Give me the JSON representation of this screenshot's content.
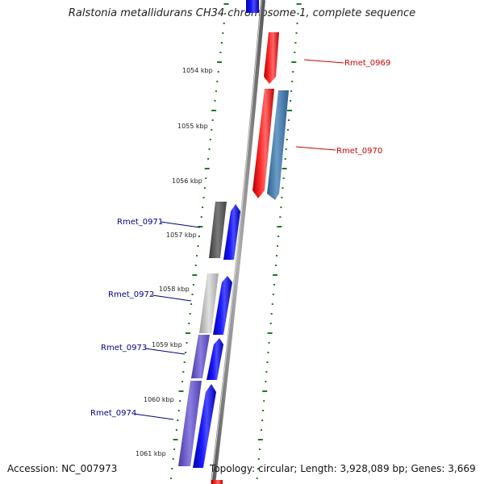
{
  "title": "Ralstonia metallidurans CH34 chromosome 1, complete sequence",
  "accession": "Accession: NC_007973",
  "topology": "Topology: circular; Length: 3,928,089 bp; Genes: 3,669",
  "colors": {
    "forward": "#0000ff",
    "reverse": "#ff0000",
    "blue_light": "#4f86b6",
    "grey_dark": "#606060",
    "grey_light": "#bdbdbd",
    "purple": "#6a5acd",
    "tick": "#1f7a1f",
    "backbone": "#888888",
    "label_red": "#cc0000",
    "label_blue": "#00008b"
  },
  "ticks": [
    "1054 kbp",
    "1055 kbp",
    "1056 kbp",
    "1057 kbp",
    "1058 kbp",
    "1059 kbp",
    "1060 kbp",
    "1061 kbp"
  ],
  "gene_labels": [
    "Rmet_0969",
    "Rmet_0970",
    "Rmet_0971",
    "Rmet_0972",
    "Rmet_0973",
    "Rmet_0974"
  ]
}
